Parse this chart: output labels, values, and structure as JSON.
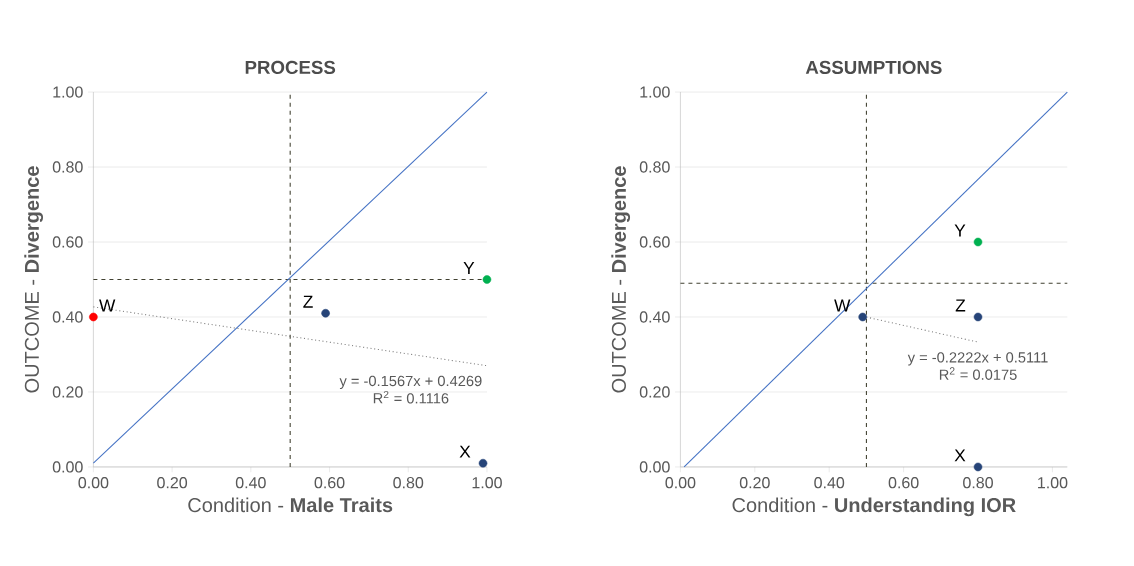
{
  "chart_data": [
    {
      "type": "scatter",
      "title": "PROCESS",
      "xlabel": "Condition - **Male Traits**",
      "ylabel": "OUTCOME - **Divergence**",
      "xlim": [
        0,
        1
      ],
      "ylim": [
        0,
        1
      ],
      "xticks": [
        {
          "value": 0,
          "label": "0.00"
        },
        {
          "value": 0.2,
          "label": "0.20"
        },
        {
          "value": 0.4,
          "label": "0.40"
        },
        {
          "value": 0.6,
          "label": "0.60"
        },
        {
          "value": 0.8,
          "label": "0.80"
        },
        {
          "value": 1,
          "label": "1.00"
        }
      ],
      "yticks": [
        {
          "value": 0,
          "label": "0.00"
        },
        {
          "value": 0.2,
          "label": "0.20"
        },
        {
          "value": 0.4,
          "label": "0.40"
        },
        {
          "value": 0.6,
          "label": "0.60"
        },
        {
          "value": 0.8,
          "label": "0.80"
        },
        {
          "value": 1,
          "label": "1.00"
        }
      ],
      "grid": "y",
      "series": [
        {
          "type": "line",
          "color": "#4472c4",
          "x": [
            0,
            1
          ],
          "values": [
            0.01,
            1.0
          ]
        },
        {
          "type": "line",
          "color": "#7f7f7f",
          "line_style": "dotted",
          "x": [
            0,
            1
          ],
          "values": [
            0.427,
            0.27
          ]
        },
        {
          "name": "W",
          "color": "#ff0000",
          "x": [
            0
          ],
          "values": [
            0.4
          ]
        },
        {
          "name": "Z",
          "color": "#264478",
          "x": [
            0.59
          ],
          "values": [
            0.41
          ]
        },
        {
          "name": "Y",
          "color": "#00b050",
          "x": [
            1.0
          ],
          "values": [
            0.5
          ]
        },
        {
          "name": "X",
          "color": "#264478",
          "x": [
            0.99
          ],
          "values": [
            0.01
          ]
        }
      ],
      "ref_lines": [
        {
          "axis": "x",
          "value": 0.5,
          "color": "#404030",
          "line_style": "dashed"
        },
        {
          "axis": "y",
          "value": 0.5,
          "color": "#404030",
          "line_style": "dashed"
        }
      ],
      "annotations": [
        "y = -0.1567x + 0.4269",
        "R$^{2}$ = 0.1116"
      ]
    },
    {
      "type": "scatter",
      "title": "ASSUMPTIONS",
      "xlabel": "Condition - **Understanding IOR**",
      "ylabel": "OUTCOME - **Divergence**",
      "xlim": [
        0,
        1.04
      ],
      "ylim": [
        0,
        1
      ],
      "xticks": [
        {
          "value": 0,
          "label": "0.00"
        },
        {
          "value": 0.2,
          "label": "0.20"
        },
        {
          "value": 0.4,
          "label": "0.40"
        },
        {
          "value": 0.6,
          "label": "0.60"
        },
        {
          "value": 0.8,
          "label": "0.80"
        },
        {
          "value": 1,
          "label": "1.00"
        }
      ],
      "yticks": [
        {
          "value": 0,
          "label": "0.00"
        },
        {
          "value": 0.2,
          "label": "0.20"
        },
        {
          "value": 0.4,
          "label": "0.40"
        },
        {
          "value": 0.6,
          "label": "0.60"
        },
        {
          "value": 0.8,
          "label": "0.80"
        },
        {
          "value": 1,
          "label": "1.00"
        }
      ],
      "grid": "y",
      "series": [
        {
          "type": "line",
          "color": "#4472c4",
          "x": [
            0.01,
            1.04
          ],
          "values": [
            0,
            1.0
          ]
        },
        {
          "type": "line",
          "color": "#7f7f7f",
          "line_style": "dotted",
          "x": [
            0.49,
            0.8
          ],
          "values": [
            0.402,
            0.333
          ]
        },
        {
          "name": "W",
          "color": "#264478",
          "x": [
            0.49
          ],
          "values": [
            0.4
          ]
        },
        {
          "name": "Z",
          "color": "#264478",
          "x": [
            0.8
          ],
          "values": [
            0.4
          ]
        },
        {
          "name": "Y",
          "color": "#00b050",
          "x": [
            0.8
          ],
          "values": [
            0.6
          ]
        },
        {
          "name": "X",
          "color": "#264478",
          "x": [
            0.8
          ],
          "values": [
            0.0
          ]
        }
      ],
      "ref_lines": [
        {
          "axis": "x",
          "value": 0.5,
          "color": "#404030",
          "line_style": "dashed"
        },
        {
          "axis": "y",
          "value": 0.49,
          "color": "#404030",
          "line_style": "dashed"
        }
      ],
      "annotations": [
        "y = -0.2222x + 0.5111",
        "R$^{2}$ = 0.0175"
      ]
    }
  ]
}
